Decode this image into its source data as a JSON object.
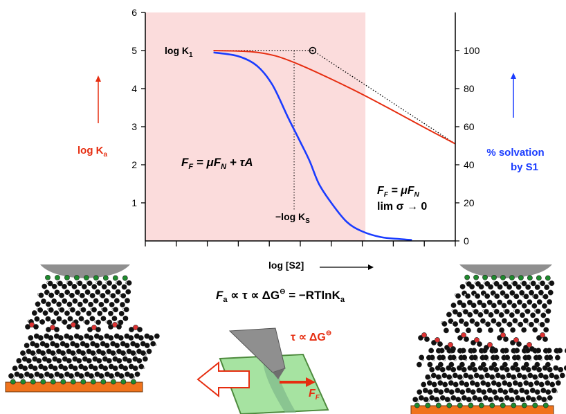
{
  "chart_data": {
    "type": "line",
    "title": "",
    "x_label": "log [S2]",
    "left_axis": {
      "label_text": "log K",
      "label_sub": "a",
      "range": [
        0,
        6
      ],
      "ticks": [
        "1",
        "2",
        "3",
        "4",
        "5",
        "6"
      ]
    },
    "right_axis": {
      "label_line1": "% solvation",
      "label_line2": "by S1",
      "range": [
        0,
        120
      ],
      "ticks": [
        "0",
        "20",
        "40",
        "60",
        "80",
        "100"
      ]
    },
    "x_range": [
      0,
      10
    ],
    "x_tick_values": [
      0,
      1,
      2,
      3,
      4,
      5,
      6,
      7,
      8,
      9,
      10
    ],
    "shaded_region": {
      "x_from": 0,
      "x_to": 7.1,
      "color": "#fbdcdc"
    },
    "series": [
      {
        "color": "#e62d10",
        "axis": "left",
        "points": [
          [
            2.2,
            5.0
          ],
          [
            3.4,
            4.97
          ],
          [
            4.2,
            4.86
          ],
          [
            5.0,
            4.62
          ],
          [
            6.0,
            4.25
          ],
          [
            7.0,
            3.85
          ],
          [
            8.0,
            3.42
          ],
          [
            9.0,
            2.98
          ],
          [
            10.0,
            2.55
          ]
        ]
      },
      {
        "color": "#1a3cff",
        "axis": "right",
        "points": [
          [
            2.2,
            99
          ],
          [
            3.0,
            97
          ],
          [
            3.6,
            92
          ],
          [
            4.1,
            82
          ],
          [
            4.6,
            65
          ],
          [
            5.0,
            52
          ],
          [
            5.3,
            42
          ],
          [
            5.6,
            30
          ],
          [
            6.0,
            20
          ],
          [
            6.5,
            10
          ],
          [
            7.0,
            5
          ],
          [
            7.6,
            2
          ],
          [
            8.2,
            1
          ],
          [
            8.6,
            0.5
          ]
        ]
      }
    ],
    "asymptotes": [
      {
        "color": "#000000",
        "dotted": true,
        "points": [
          [
            2.2,
            5.0
          ],
          [
            5.4,
            5.0
          ]
        ]
      },
      {
        "color": "#000000",
        "dotted": true,
        "points": [
          [
            5.4,
            5.0
          ],
          [
            10.0,
            2.55
          ]
        ]
      }
    ],
    "knee_marker": {
      "x": 5.4,
      "y": 5.0
    },
    "pK_marker_x": 4.8
  },
  "labels": {
    "log_k1": "log K",
    "log_k1_sub": "1",
    "minus_log_ks": "−log K",
    "minus_log_ks_sub": "S",
    "ff_eq1": "F",
    "ff_eq1_sub": "F",
    "ff_eq1_rest": " = μF",
    "ff_eq1_sub2": "N",
    "ff_eq1_tail": " + τA",
    "ff_eq2": "F",
    "ff_eq2_sub": "F",
    "ff_eq2_rest": " = μF",
    "ff_eq2_sub2": "N",
    "lim_line": "lim σ → 0",
    "main_eq_a": "F",
    "main_eq_sub": "a",
    "main_eq_b": " ∝ τ ∝ ΔG",
    "main_eq_c": " = −RTlnK",
    "main_eq_sub2": "a",
    "tau_eq": "τ ∝ ΔG",
    "ff_arrow": "F",
    "ff_arrow_sub": "F"
  },
  "colors": {
    "red": "#e62d10",
    "blue": "#1a3cff",
    "green": "#a6e3a1",
    "orange": "#f0731c",
    "grey": "#8f8f8f"
  }
}
